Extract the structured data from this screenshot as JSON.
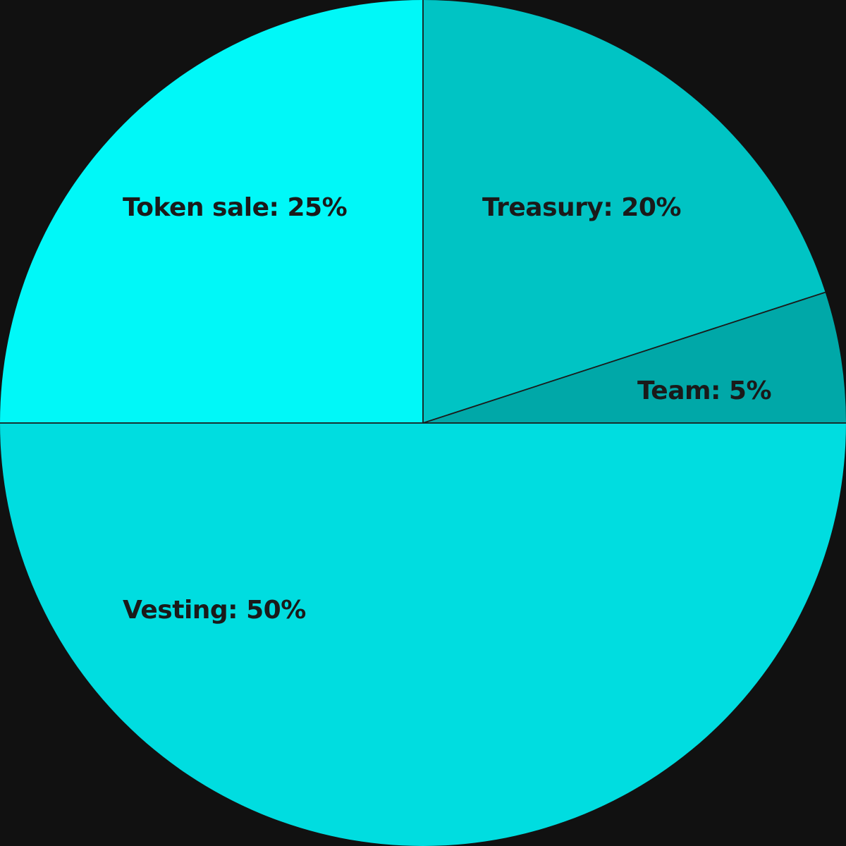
{
  "page": {
    "background_color": "#111111"
  },
  "chart_data": {
    "type": "pie",
    "slices": [
      {
        "category": "Treasury",
        "value": 20,
        "label": "Treasury: 20%",
        "color": "#00C4C4"
      },
      {
        "category": "Team",
        "value": 5,
        "label": "Team: 5%",
        "color": "#00A8A8"
      },
      {
        "category": "Vesting",
        "value": 50,
        "label": "Vesting: 50%",
        "color": "#00DDE0"
      },
      {
        "category": "Token sale",
        "value": 25,
        "label": "Token sale: 25%",
        "color": "#00F8F8"
      }
    ],
    "start_angle_deg": 0,
    "direction": "clockwise",
    "slice_border_color": "#1a1a1a",
    "label_color": "#1a1a1a"
  }
}
